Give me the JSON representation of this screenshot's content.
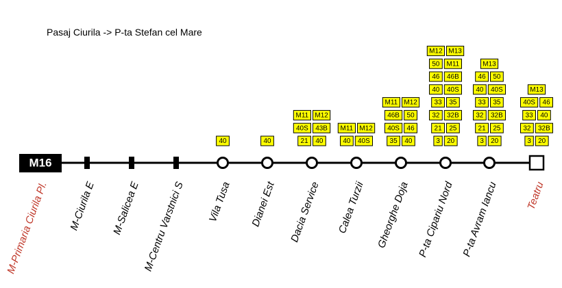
{
  "title": "Pasaj Ciurila -> P-ta Stefan cel Mare",
  "route": "M16",
  "stops": [
    {
      "name": "M-Primaria Ciurila Pl.",
      "connections": []
    },
    {
      "name": "M-Ciurila E",
      "connections": []
    },
    {
      "name": "M-Salicea E",
      "connections": []
    },
    {
      "name": "M-Centru Varstnici S",
      "connections": []
    },
    {
      "name": "Vila Tusa",
      "connections": [
        [
          "40"
        ]
      ]
    },
    {
      "name": "Dianei Est",
      "connections": [
        [
          "40"
        ]
      ]
    },
    {
      "name": "Dacia Service",
      "connections": [
        [
          "21",
          "40"
        ],
        [
          "40S",
          "43B"
        ],
        [
          "M11",
          "M12"
        ]
      ]
    },
    {
      "name": "Calea Turzii",
      "connections": [
        [
          "40",
          "40S"
        ],
        [
          "M11",
          "M12"
        ]
      ]
    },
    {
      "name": "Gheorghe Doja",
      "connections": [
        [
          "35",
          "40"
        ],
        [
          "40S",
          "46"
        ],
        [
          "46B",
          "50"
        ],
        [
          "M11",
          "M12"
        ]
      ]
    },
    {
      "name": "P-ta Cipariu Nord",
      "connections": [
        [
          "3",
          "20"
        ],
        [
          "21",
          "25"
        ],
        [
          "32",
          "32B"
        ],
        [
          "33",
          "35"
        ],
        [
          "40",
          "40S"
        ],
        [
          "46",
          "46B"
        ],
        [
          "50",
          "M11"
        ],
        [
          "M12",
          "M13"
        ]
      ]
    },
    {
      "name": "P-ta Avram Iancu",
      "connections": [
        [
          "3",
          "20"
        ],
        [
          "21",
          "25"
        ],
        [
          "32",
          "32B"
        ],
        [
          "33",
          "35"
        ],
        [
          "40",
          "40S"
        ],
        [
          "46",
          "50"
        ],
        [
          "M13"
        ]
      ]
    },
    {
      "name": "Teatru",
      "connections": [
        [
          "3",
          "20"
        ],
        [
          "32",
          "32B"
        ],
        [
          "33",
          "40"
        ],
        [
          "40S",
          "46"
        ],
        [
          "M13"
        ]
      ]
    }
  ]
}
